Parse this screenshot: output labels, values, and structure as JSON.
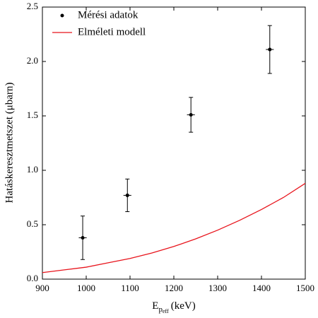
{
  "chart_data": {
    "type": "scatter",
    "y_label": "Hatáskeresztmetszet (μbarn)",
    "x_label": {
      "main": "E",
      "sub": "p",
      "subsub": "eff",
      "unit": "(keV)"
    },
    "xlim": [
      900,
      1500
    ],
    "xticks": [
      900,
      1000,
      1100,
      1200,
      1300,
      1400,
      1500
    ],
    "ylim": [
      0,
      2.5
    ],
    "yticks": [
      {
        "value": 0,
        "label": "0.0"
      },
      0.5,
      {
        "value": 1,
        "label": "1.0"
      },
      1.5,
      {
        "value": 2,
        "label": "2.0"
      },
      2.5
    ],
    "legend": "upper-left",
    "series": [
      {
        "name": "Mérési adatok",
        "type": "scatter",
        "color": "#000000",
        "x": [
          992,
          1094,
          1239,
          1419
        ],
        "values": [
          0.38,
          0.77,
          1.51,
          2.11
        ],
        "yerr": [
          0.2,
          0.15,
          0.16,
          0.22
        ],
        "xerr": [
          9,
          9,
          9,
          9
        ]
      },
      {
        "name": "Elméleti modell",
        "type": "line",
        "color": "#e8141c",
        "x": [
          900,
          950,
          1000,
          1050,
          1100,
          1150,
          1200,
          1250,
          1300,
          1350,
          1400,
          1450,
          1500
        ],
        "values": [
          0.06,
          0.085,
          0.11,
          0.15,
          0.19,
          0.24,
          0.3,
          0.37,
          0.45,
          0.54,
          0.64,
          0.75,
          0.88
        ]
      }
    ]
  }
}
